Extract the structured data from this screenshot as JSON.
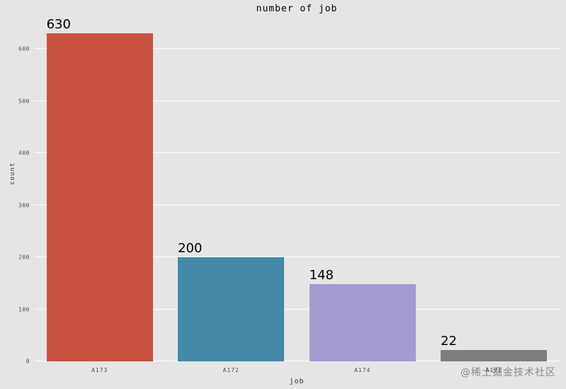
{
  "figure": {
    "title": "number of job",
    "xlabel": "job",
    "ylabel": "count",
    "watermark": "@稀土掘金技术社区"
  },
  "chart_data": {
    "type": "bar",
    "title": "number of job",
    "xlabel": "job",
    "ylabel": "count",
    "categories": [
      "A173",
      "A172",
      "A174",
      "A171"
    ],
    "values": [
      630,
      200,
      148,
      22
    ],
    "value_labels": [
      "630",
      "200",
      "148",
      "22"
    ],
    "bar_colors": [
      "#c85140",
      "#4489aa",
      "#a49bd1",
      "#7d7d7d"
    ],
    "ylim": [
      0,
      660
    ],
    "yticks": [
      0,
      100,
      200,
      300,
      400,
      500,
      600
    ],
    "grid": "horizontal major gridlines, white on gray background",
    "legend": "none",
    "style": "ggplot gray background",
    "background_color": "#e5e5e5",
    "gridline_color": "#ffffff"
  }
}
